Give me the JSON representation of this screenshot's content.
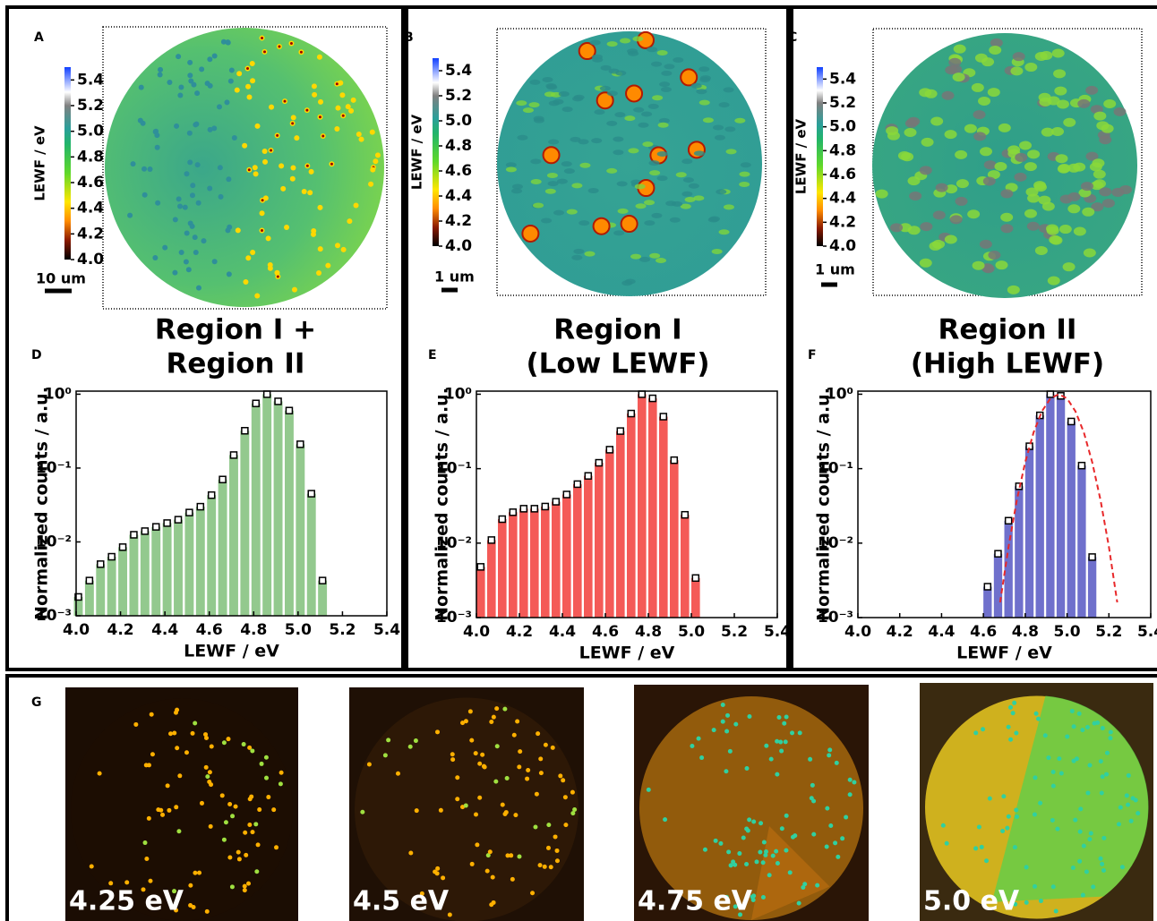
{
  "maps": [
    {
      "label": "A",
      "colorbar_label": "LEWF / eV",
      "colorbar_lim": [
        4.0,
        5.5
      ],
      "colorbar_ticks": [
        {
          "value": 4.0,
          "label": "4.0"
        },
        4.2,
        4.4,
        4.6,
        4.8,
        {
          "value": 5.0,
          "label": "5.0"
        },
        5.2,
        5.4
      ],
      "scale_bar": "10 um"
    },
    {
      "label": "B",
      "colorbar_label": "LEWF / eV",
      "colorbar_lim": [
        4.0,
        5.5
      ],
      "colorbar_ticks": [
        {
          "value": 4.0,
          "label": "4.0"
        },
        4.2,
        4.4,
        4.6,
        4.8,
        {
          "value": 5.0,
          "label": "5.0"
        },
        5.2,
        5.4
      ],
      "scale_bar": "1 um"
    },
    {
      "label": "C",
      "colorbar_label": "LEWF / eV",
      "colorbar_lim": [
        4.0,
        5.5
      ],
      "colorbar_ticks": [
        {
          "value": 4.0,
          "label": "4.0"
        },
        4.2,
        4.4,
        4.6,
        4.8,
        {
          "value": 5.0,
          "label": "5.0"
        },
        5.2,
        5.4
      ],
      "scale_bar": "1 um"
    }
  ],
  "chart_data": [
    {
      "type": "bar",
      "label": "D",
      "title": [
        "Region I +",
        "Region II"
      ],
      "color": "#93c98e",
      "markers": true,
      "log_y": true,
      "x": [
        4.01,
        4.06,
        4.11,
        4.16,
        4.21,
        4.26,
        4.31,
        4.36,
        4.41,
        4.46,
        4.51,
        4.56,
        4.61,
        4.66,
        4.71,
        4.76,
        4.81,
        4.86,
        4.91,
        4.96,
        5.01,
        5.06,
        5.11
      ],
      "values": [
        0.0018,
        0.003,
        0.005,
        0.0063,
        0.0085,
        0.0125,
        0.014,
        0.016,
        0.018,
        0.02,
        0.025,
        0.03,
        0.043,
        0.07,
        0.15,
        0.32,
        0.75,
        1.0,
        0.8,
        0.6,
        0.21,
        0.045,
        0.003
      ],
      "xlabel": "LEWF / eV",
      "ylabel": "Normalized counts / a.u.",
      "xlim": [
        4.0,
        5.4
      ],
      "xticks": [
        {
          "value": 4.0,
          "label": "4.0"
        },
        4.2,
        4.4,
        4.6,
        4.8,
        {
          "value": 5.0,
          "label": "5.0"
        },
        5.2,
        5.4
      ],
      "ylim": [
        0.001,
        1.1
      ],
      "yticks": [
        {
          "value": 0.001,
          "label": "10⁻³"
        },
        {
          "value": 0.01,
          "label": "10⁻²"
        },
        {
          "value": 0.1,
          "label": "10⁻¹"
        },
        {
          "value": 1,
          "label": "10⁰"
        }
      ]
    },
    {
      "type": "bar",
      "label": "E",
      "title": [
        "Region I",
        "(Low LEWF)"
      ],
      "color": "#f45a57",
      "markers": true,
      "log_y": true,
      "x": [
        4.02,
        4.07,
        4.12,
        4.17,
        4.22,
        4.27,
        4.32,
        4.37,
        4.42,
        4.47,
        4.52,
        4.57,
        4.62,
        4.67,
        4.72,
        4.77,
        4.82,
        4.87,
        4.92,
        4.97,
        5.02
      ],
      "values": [
        0.0048,
        0.011,
        0.021,
        0.026,
        0.029,
        0.029,
        0.031,
        0.036,
        0.045,
        0.062,
        0.08,
        0.12,
        0.18,
        0.32,
        0.55,
        1.0,
        0.88,
        0.5,
        0.13,
        0.024,
        0.0034
      ],
      "xlabel": "LEWF / eV",
      "ylabel": "Normalized counts / a.u.",
      "xlim": [
        4.0,
        5.4
      ],
      "xticks": [
        {
          "value": 4.0,
          "label": "4.0"
        },
        4.2,
        4.4,
        4.6,
        4.8,
        {
          "value": 5.0,
          "label": "5.0"
        },
        5.2,
        5.4
      ],
      "ylim": [
        0.001,
        1.1
      ],
      "yticks": [
        {
          "value": 0.001,
          "label": "10⁻³"
        },
        {
          "value": 0.01,
          "label": "10⁻²"
        },
        {
          "value": 0.1,
          "label": "10⁻¹"
        },
        {
          "value": 1,
          "label": "10⁰"
        }
      ]
    },
    {
      "type": "bar",
      "label": "F",
      "title": [
        "Region II",
        "(High LEWF)"
      ],
      "color": "#6f70cc",
      "markers": true,
      "log_y": true,
      "x": [
        4.62,
        4.67,
        4.72,
        4.77,
        4.82,
        4.87,
        4.92,
        4.97,
        5.02,
        5.07,
        5.12
      ],
      "values": [
        0.0026,
        0.0072,
        0.02,
        0.058,
        0.2,
        0.52,
        1.0,
        0.95,
        0.43,
        0.11,
        0.0065
      ],
      "fit": {
        "color": "#e8282a",
        "dashed": true,
        "x": [
          4.68,
          4.72,
          4.76,
          4.8,
          4.84,
          4.88,
          4.92,
          4.96,
          5.0,
          5.04,
          5.08,
          5.12,
          5.16,
          5.2,
          5.24
        ],
        "values": [
          0.0016,
          0.0089,
          0.038,
          0.123,
          0.307,
          0.59,
          0.877,
          1.0,
          0.877,
          0.59,
          0.307,
          0.123,
          0.038,
          0.0089,
          0.0016
        ]
      },
      "xlabel": "LEWF / eV",
      "ylabel": "Normalized counts / a.u.",
      "xlim": [
        4.0,
        5.4
      ],
      "xticks": [
        {
          "value": 4.0,
          "label": "4.0"
        },
        4.2,
        4.4,
        4.6,
        4.8,
        {
          "value": 5.0,
          "label": "5.0"
        },
        5.2,
        5.4
      ],
      "ylim": [
        0.001,
        1.1
      ],
      "yticks": [
        {
          "value": 0.001,
          "label": "10⁻³"
        },
        {
          "value": 0.01,
          "label": "10⁻²"
        },
        {
          "value": 0.1,
          "label": "10⁻¹"
        },
        {
          "value": 1,
          "label": "10⁰"
        }
      ]
    }
  ],
  "energy_maps": {
    "label": "G",
    "captions": [
      "4.25 eV",
      "4.5 eV",
      "4.75 eV",
      "5.0 eV"
    ]
  }
}
